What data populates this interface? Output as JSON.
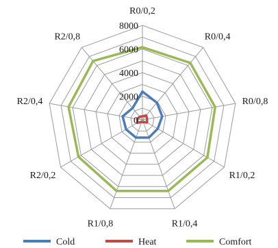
{
  "chart_data": {
    "type": "radar",
    "title": "",
    "categories": [
      "R0/0,2",
      "R0/0,4",
      "R0/0,8",
      "R1/0,2",
      "R1/0,4",
      "R1/0,8",
      "R2/0,2",
      "R2/0,4",
      "R2/0,8"
    ],
    "ticks": [
      "0",
      "2000",
      "4000",
      "6000",
      "8000"
    ],
    "rlim": [
      0,
      8000
    ],
    "grid": true,
    "legend_position": "bottom",
    "series": [
      {
        "name": "Cold",
        "color": "#4a7ebb",
        "values": [
          2400,
          1900,
          1700,
          1500,
          1600,
          1600,
          1600,
          1700,
          1300
        ]
      },
      {
        "name": "Heat",
        "color": "#be4b48",
        "values": [
          300,
          500,
          400,
          450,
          200,
          200,
          500,
          450,
          350
        ]
      },
      {
        "name": "Comfort",
        "color": "#98b954",
        "values": [
          6150,
          6300,
          6250,
          6350,
          6400,
          6400,
          6250,
          6350,
          6500
        ]
      }
    ]
  }
}
